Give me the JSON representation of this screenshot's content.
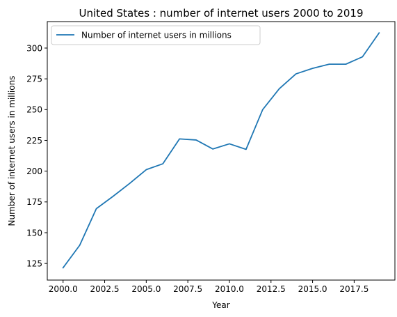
{
  "chart_data": {
    "type": "line",
    "title": "United States : number of internet users 2000 to 2019",
    "xlabel": "Year",
    "ylabel": "Number of internet users in millions",
    "xlim": [
      1999.05,
      2019.95
    ],
    "ylim": [
      111.5,
      321.5
    ],
    "x_ticks": [
      2000.0,
      2002.5,
      2005.0,
      2007.5,
      2010.0,
      2012.5,
      2015.0,
      2017.5
    ],
    "x_tick_labels": [
      "2000.0",
      "2002.5",
      "2005.0",
      "2007.5",
      "2010.0",
      "2012.5",
      "2015.0",
      "2017.5"
    ],
    "y_ticks": [
      125,
      150,
      175,
      200,
      225,
      250,
      275,
      300
    ],
    "y_tick_labels": [
      "125",
      "150",
      "175",
      "200",
      "225",
      "250",
      "275",
      "300"
    ],
    "grid": false,
    "legend_position": "top-left",
    "series": [
      {
        "name": "Number of internet users in millions",
        "color": "#1f77b4",
        "x": [
          2000,
          2001,
          2002,
          2003,
          2004,
          2005,
          2006,
          2007,
          2008,
          2009,
          2010,
          2011,
          2012,
          2013,
          2014,
          2015,
          2016,
          2017,
          2018,
          2019
        ],
        "values": [
          121.5,
          139.8,
          169.5,
          179.5,
          190.0,
          201.2,
          206.0,
          226.2,
          225.3,
          218.0,
          222.2,
          217.7,
          250.0,
          267.0,
          279.0,
          283.5,
          286.9,
          286.9,
          292.9,
          312.3
        ]
      }
    ]
  }
}
